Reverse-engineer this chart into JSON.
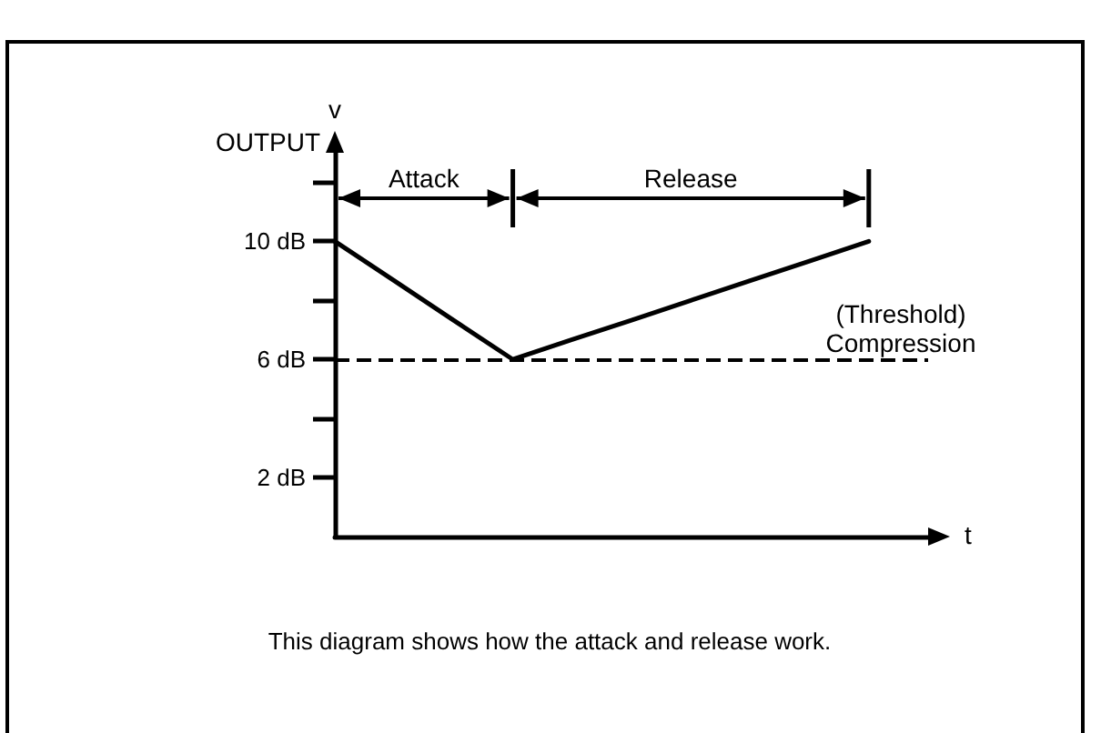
{
  "chart_data": {
    "type": "line",
    "ylabel": "OUTPUT",
    "xlabel": "t",
    "categories": [
      null,
      null,
      null,
      null,
      null,
      null,
      null,
      null,
      null,
      null,
      null
    ],
    "series": [
      {
        "color": "#000000",
        "values": [
          10,
          8.67,
          7.33,
          6,
          6.67,
          7.33,
          8,
          8.67,
          9.33,
          10,
          null
        ]
      }
    ],
    "ylim": [
      0,
      13
    ],
    "yticks": [
      {
        "value": 2,
        "label": "2 dB"
      },
      {
        "value": 4,
        "label": null
      },
      {
        "value": 6,
        "label": "6 dB"
      },
      {
        "value": 8,
        "label": null
      },
      {
        "value": 10,
        "label": "10 dB"
      },
      {
        "value": 12,
        "label": null
      }
    ],
    "ref_lines": [
      {
        "axis": "y",
        "value": 6,
        "label": "(Threshold)\nCompression",
        "line_style": "dashed",
        "color": "#000000"
      }
    ],
    "annotations": [
      "v",
      "Attack",
      "Release",
      "This diagram shows how the attack and release work."
    ],
    "grid": false,
    "marker": "none",
    "line_style": "solid",
    "tick_labels": "y"
  }
}
